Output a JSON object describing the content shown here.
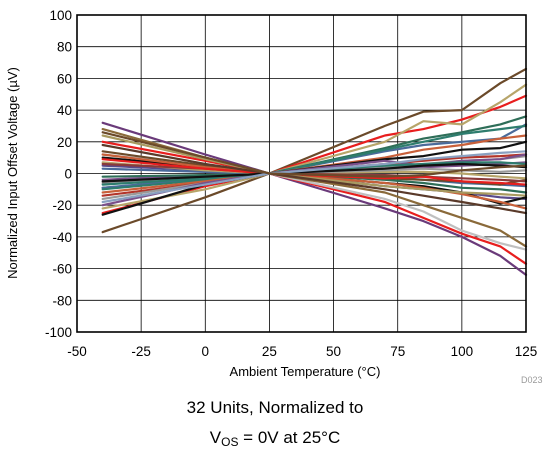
{
  "chart_data": {
    "type": "line",
    "xlabel": "Ambient Temperature (°C)",
    "ylabel": "Normalized Input Offset Voltage (µV)",
    "xlim": [
      -50,
      125
    ],
    "ylim": [
      -100,
      100
    ],
    "xticks": [
      -50,
      -25,
      0,
      25,
      50,
      75,
      100,
      125
    ],
    "yticks": [
      -100,
      -80,
      -60,
      -40,
      -20,
      0,
      20,
      40,
      60,
      80,
      100
    ],
    "grid": true,
    "legend": "none",
    "figure_code": "D023",
    "x": [
      -40,
      0,
      25,
      70,
      85,
      100,
      115,
      125
    ],
    "series": [
      {
        "color": "#6b4a2a",
        "values": [
          -37,
          -15,
          0,
          30,
          39,
          40,
          57,
          66
        ]
      },
      {
        "color": "#e81e1e",
        "values": [
          -25,
          -8,
          0,
          24,
          28,
          34,
          42,
          49
        ]
      },
      {
        "color": "#b7a56a",
        "values": [
          -22,
          -10,
          0,
          20,
          33,
          31,
          45,
          56
        ]
      },
      {
        "color": "#2e6e58",
        "values": [
          -9,
          -4,
          0,
          16,
          22,
          26,
          31,
          36
        ]
      },
      {
        "color": "#4a6a9a",
        "values": [
          -9,
          -3,
          0,
          14,
          18,
          20,
          22,
          31
        ]
      },
      {
        "color": "#2e7d6e",
        "values": [
          -10,
          -4,
          0,
          15,
          20,
          25,
          28,
          30
        ]
      },
      {
        "color": "#c8603a",
        "values": [
          -12,
          -5,
          0,
          10,
          15,
          18,
          22,
          24
        ]
      },
      {
        "color": "#111111",
        "values": [
          -26,
          -7,
          0,
          9,
          11,
          15,
          16,
          20
        ]
      },
      {
        "color": "#999999",
        "values": [
          -6,
          -2,
          0,
          4,
          6,
          8,
          9,
          11
        ]
      },
      {
        "color": "#7a4f8a",
        "values": [
          -4,
          -1,
          0,
          3,
          4,
          5,
          6,
          7
        ]
      },
      {
        "color": "#b2352a",
        "values": [
          -14,
          -6,
          0,
          6,
          8,
          10,
          11,
          12
        ]
      },
      {
        "color": "#6a3a7a",
        "values": [
          32,
          12,
          0,
          -22,
          -30,
          -40,
          -52,
          -64
        ]
      },
      {
        "color": "#e81e1e",
        "values": [
          20,
          8,
          0,
          -18,
          -28,
          -38,
          -46,
          -57
        ]
      },
      {
        "color": "#c0c0c0",
        "values": [
          12,
          5,
          0,
          -16,
          -24,
          -36,
          -44,
          -48
        ]
      },
      {
        "color": "#8a6a3a",
        "values": [
          28,
          10,
          0,
          -12,
          -20,
          -28,
          -36,
          -46
        ]
      },
      {
        "color": "#5a4a8a",
        "values": [
          5,
          2,
          0,
          -8,
          -10,
          -12,
          -15,
          -16
        ]
      },
      {
        "color": "#111111",
        "values": [
          10,
          4,
          0,
          -6,
          -8,
          -12,
          -19,
          -15
        ]
      },
      {
        "color": "#2e6e58",
        "values": [
          -2,
          -1,
          0,
          -4,
          -6,
          -9,
          -10,
          -12
        ]
      },
      {
        "color": "#4a6a9a",
        "values": [
          3,
          1,
          0,
          -2,
          -4,
          -6,
          -7,
          -8
        ]
      },
      {
        "color": "#6b4a2a",
        "values": [
          14,
          5,
          0,
          -3,
          -4,
          -5,
          -7,
          -4
        ]
      },
      {
        "color": "#b7a56a",
        "values": [
          7,
          2,
          0,
          1,
          1,
          0,
          -2,
          -3
        ]
      },
      {
        "color": "#999999",
        "values": [
          -16,
          -6,
          0,
          2,
          3,
          2,
          1,
          2
        ]
      },
      {
        "color": "#8a3a3a",
        "values": [
          6,
          3,
          0,
          -1,
          -2,
          -3,
          -4,
          -5
        ]
      },
      {
        "color": "#c8603a",
        "values": [
          12,
          4,
          0,
          -6,
          -9,
          -13,
          -18,
          -22
        ]
      },
      {
        "color": "#7a4f8a",
        "values": [
          -20,
          -6,
          0,
          8,
          5,
          8,
          9,
          12
        ]
      },
      {
        "color": "#e81e1e",
        "values": [
          9,
          3,
          0,
          -3,
          -2,
          -5,
          -6,
          -7
        ]
      },
      {
        "color": "#2e7d6e",
        "values": [
          -7,
          -3,
          0,
          5,
          6,
          7,
          7,
          6
        ]
      },
      {
        "color": "#111111",
        "values": [
          -5,
          -2,
          0,
          3,
          5,
          6,
          5,
          4
        ]
      },
      {
        "color": "#a89a60",
        "values": [
          24,
          9,
          0,
          -8,
          -10,
          -12,
          -13,
          -14
        ]
      },
      {
        "color": "#5a3a2a",
        "values": [
          18,
          6,
          0,
          -10,
          -14,
          -18,
          -22,
          -25
        ]
      },
      {
        "color": "#8aa0c0",
        "values": [
          -18,
          -7,
          0,
          6,
          9,
          11,
          13,
          14
        ]
      },
      {
        "color": "#6b4a2a",
        "values": [
          26,
          10,
          0,
          -2,
          -1,
          2,
          4,
          5
        ]
      }
    ]
  },
  "caption": {
    "line1": "32 Units, Normalized to",
    "line2_prefix": "V",
    "line2_sub": "OS",
    "line2_suffix": " = 0V at 25°C"
  }
}
